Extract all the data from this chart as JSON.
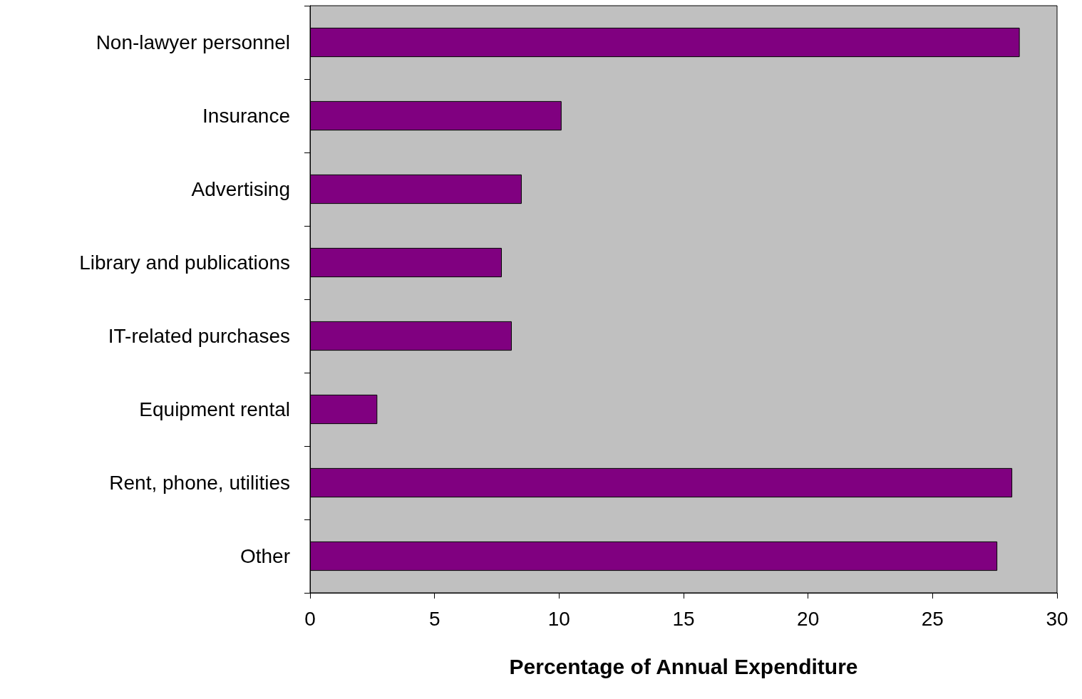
{
  "chart_data": {
    "type": "bar",
    "orientation": "horizontal",
    "xlabel": "Percentage of Annual Expenditure",
    "categories": [
      "Non-lawyer personnel",
      "Insurance",
      "Advertising",
      "Library and publications",
      "IT-related purchases",
      "Equipment rental",
      "Rent, phone, utilities",
      "Other"
    ],
    "values": [
      28.5,
      10.1,
      8.5,
      7.7,
      8.1,
      2.7,
      28.2,
      27.6
    ],
    "color": "#800080",
    "xlim": [
      0,
      30
    ],
    "xticks": [
      0,
      5,
      10,
      15,
      20,
      25,
      30
    ]
  }
}
